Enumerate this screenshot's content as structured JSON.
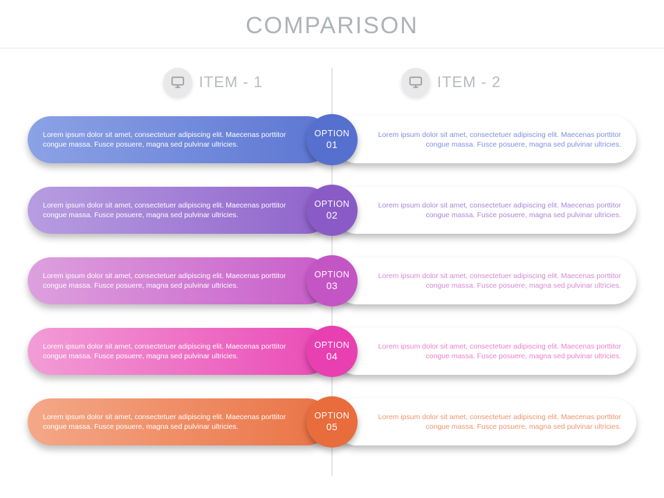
{
  "title": "COMPARISON",
  "title_color": "#aeb3b8",
  "title_fontsize": 34,
  "background_color": "#ffffff",
  "divider_color": "#c8c8c8",
  "item_label_color": "#b7bbbf",
  "item_icon_bg": "#e9e9e9",
  "monitor_icon_color": "#9a9fa4",
  "items": [
    {
      "label": "ITEM - 1"
    },
    {
      "label": "ITEM - 2"
    }
  ],
  "rows": [
    {
      "option_label": "OPTION",
      "option_number": "01",
      "badge_color": "#5670cf",
      "left_gradient_from": "#8ca2e6",
      "left_gradient_to": "#5c76d2",
      "right_text_color": "#7d90df",
      "left_text": "Lorem ipsum dolor sit amet, consectetuer adipiscing elit. Maecenas porttitor congue massa. Fusce posuere, magna sed pulvinar ultricies.",
      "right_text": "Lorem ipsum dolor sit amet, consectetuer adipiscing elit. Maecenas porttitor congue massa. Fusce posuere, magna sed pulvinar ultricies."
    },
    {
      "option_label": "OPTION",
      "option_number": "02",
      "badge_color": "#8a5bc6",
      "left_gradient_from": "#b79de1",
      "left_gradient_to": "#8f63cb",
      "right_text_color": "#a886d6",
      "left_text": "Lorem ipsum dolor sit amet, consectetuer adipiscing elit. Maecenas porttitor congue massa. Fusce posuere, magna sed pulvinar ultricies.",
      "right_text": "Lorem ipsum dolor sit amet, consectetuer adipiscing elit. Maecenas porttitor congue massa. Fusce posuere, magna sed pulvinar ultricies."
    },
    {
      "option_label": "OPTION",
      "option_number": "03",
      "badge_color": "#c455c5",
      "left_gradient_from": "#dda0de",
      "left_gradient_to": "#c85dc9",
      "right_text_color": "#d489d4",
      "left_text": "Lorem ipsum dolor sit amet, consectetuer adipiscing elit. Maecenas porttitor congue massa. Fusce posuere, magna sed pulvinar ultricies.",
      "right_text": "Lorem ipsum dolor sit amet, consectetuer adipiscing elit. Maecenas porttitor congue massa. Fusce posuere, magna sed pulvinar ultricies."
    },
    {
      "option_label": "OPTION",
      "option_number": "04",
      "badge_color": "#e83fb1",
      "left_gradient_from": "#f29dd6",
      "left_gradient_to": "#ea4ab6",
      "right_text_color": "#ee7ec8",
      "left_text": "Lorem ipsum dolor sit amet, consectetuer adipiscing elit. Maecenas porttitor congue massa. Fusce posuere, magna sed pulvinar ultricies.",
      "right_text": "Lorem ipsum dolor sit amet, consectetuer adipiscing elit. Maecenas porttitor congue massa. Fusce posuere, magna sed pulvinar ultricies."
    },
    {
      "option_label": "OPTION",
      "option_number": "05",
      "badge_color": "#e86c3c",
      "left_gradient_from": "#f4a888",
      "left_gradient_to": "#ea7345",
      "right_text_color": "#ef9370",
      "left_text": "Lorem ipsum dolor sit amet, consectetuer adipiscing elit. Maecenas porttitor congue massa. Fusce posuere, magna sed pulvinar ultricies.",
      "right_text": "Lorem ipsum dolor sit amet, consectetuer adipiscing elit. Maecenas porttitor congue massa. Fusce posuere, magna sed pulvinar ultricies."
    }
  ]
}
